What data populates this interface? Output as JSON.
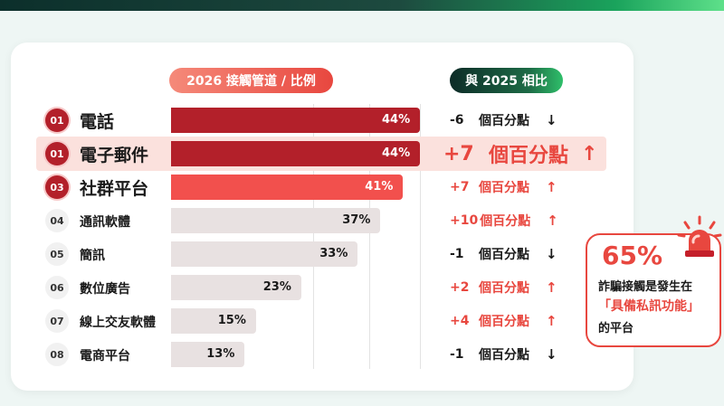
{
  "header": {
    "left_pill": "2026 接觸管道 / 比例",
    "right_pill": "與 2025 相比"
  },
  "colors": {
    "top_red": "#b3202a",
    "accent_red": "#f2504d",
    "grey_bar": "#e8e1e1",
    "up_red": "#e8473f",
    "down_dark": "#1a1a1a"
  },
  "chart_data": {
    "type": "bar",
    "orientation": "horizontal",
    "xlim": [
      0,
      50
    ],
    "grid": true,
    "rows": [
      {
        "rank": "01",
        "name": "電話",
        "value": 44,
        "label": "44%",
        "change": "-6",
        "change_unit": "個百分點",
        "direction": "down",
        "style": "top"
      },
      {
        "rank": "01",
        "name": "電子郵件",
        "value": 44,
        "label": "44%",
        "change": "+7",
        "change_unit": "個百分點",
        "direction": "up",
        "style": "top",
        "highlight": true
      },
      {
        "rank": "03",
        "name": "社群平台",
        "value": 41,
        "label": "41%",
        "change": "+7",
        "change_unit": "個百分點",
        "direction": "up",
        "style": "accent"
      },
      {
        "rank": "04",
        "name": "通訊軟體",
        "value": 37,
        "label": "37%",
        "change": "+10",
        "change_unit": "個百分點",
        "direction": "up",
        "style": "grey"
      },
      {
        "rank": "05",
        "name": "簡訊",
        "value": 33,
        "label": "33%",
        "change": "-1",
        "change_unit": "個百分點",
        "direction": "down",
        "style": "grey"
      },
      {
        "rank": "06",
        "name": "數位廣告",
        "value": 23,
        "label": "23%",
        "change": "+2",
        "change_unit": "個百分點",
        "direction": "up",
        "style": "grey"
      },
      {
        "rank": "07",
        "name": "線上交友軟體",
        "value": 15,
        "label": "15%",
        "change": "+4",
        "change_unit": "個百分點",
        "direction": "up",
        "style": "grey"
      },
      {
        "rank": "08",
        "name": "電商平台",
        "value": 13,
        "label": "13%",
        "change": "-1",
        "change_unit": "個百分點",
        "direction": "down",
        "style": "grey"
      }
    ]
  },
  "callout": {
    "percent": "65%",
    "line1": "詐騙接觸是發生在",
    "line2": "「具備私訊功能」",
    "line3": "的平台",
    "icon": "siren-icon"
  }
}
